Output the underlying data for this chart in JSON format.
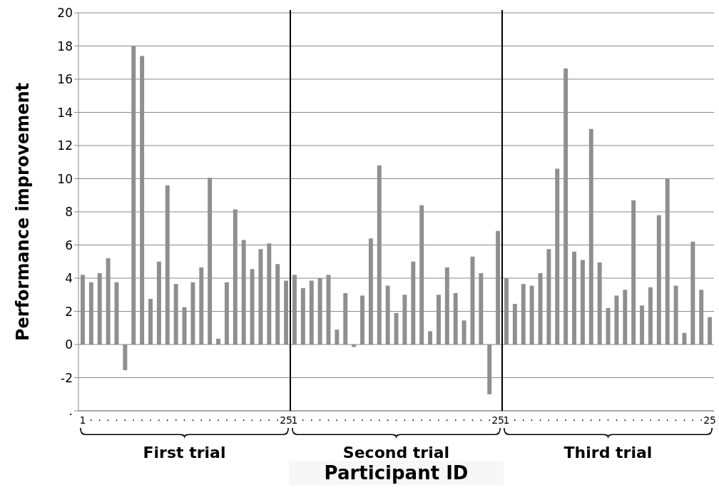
{
  "chart_data": {
    "type": "bar",
    "xlabel": "Participant ID",
    "ylabel": "Performance improvement",
    "categories": [
      "1",
      "·",
      "·",
      "·",
      "·",
      "·",
      "·",
      "·",
      "·",
      "·",
      "·",
      "·",
      "·",
      "·",
      "·",
      "·",
      "·",
      "·",
      "·",
      "·",
      "·",
      "·",
      "·",
      "·",
      "25",
      "1",
      "·",
      "·",
      "·",
      "·",
      "·",
      "·",
      "·",
      "·",
      "·",
      "·",
      "·",
      "·",
      "·",
      "·",
      "·",
      "·",
      "·",
      "·",
      "·",
      "·",
      "·",
      "·",
      "·",
      "25",
      "1",
      "·",
      "·",
      "·",
      "·",
      "·",
      "·",
      "·",
      "·",
      "·",
      "·",
      "·",
      "·",
      "·",
      "·",
      "·",
      "·",
      "·",
      "·",
      "·",
      "·",
      "·",
      "·",
      "·",
      "25"
    ],
    "values": [
      4.2,
      3.75,
      4.3,
      5.2,
      3.75,
      -1.55,
      18,
      17.4,
      2.75,
      5,
      9.6,
      3.65,
      2.25,
      3.75,
      4.65,
      10.05,
      0.35,
      3.75,
      8.15,
      6.3,
      4.55,
      5.75,
      6.1,
      4.85,
      3.85,
      4.2,
      3.4,
      3.85,
      4,
      4.2,
      0.9,
      3.1,
      -0.15,
      2.95,
      6.4,
      10.8,
      3.55,
      1.9,
      3,
      5,
      8.4,
      0.8,
      3,
      4.65,
      3.1,
      1.45,
      5.3,
      4.3,
      -3,
      6.85,
      4,
      2.45,
      3.65,
      3.55,
      4.3,
      5.75,
      10.6,
      16.65,
      5.6,
      5.1,
      13,
      4.95,
      2.2,
      2.95,
      3.3,
      8.7,
      2.35,
      3.45,
      7.8,
      10,
      3.55,
      0.7,
      6.2,
      3.3,
      1.65
    ],
    "color": "#8f8f8f",
    "ylim": [
      -4,
      20
    ],
    "yticks": [
      {
        "value": -4,
        "label": "."
      },
      -2,
      0,
      2,
      4,
      6,
      8,
      10,
      12,
      14,
      16,
      18,
      20
    ],
    "grid": "y",
    "annotations": [
      "First trial",
      "Second trial",
      "Third trial"
    ]
  }
}
